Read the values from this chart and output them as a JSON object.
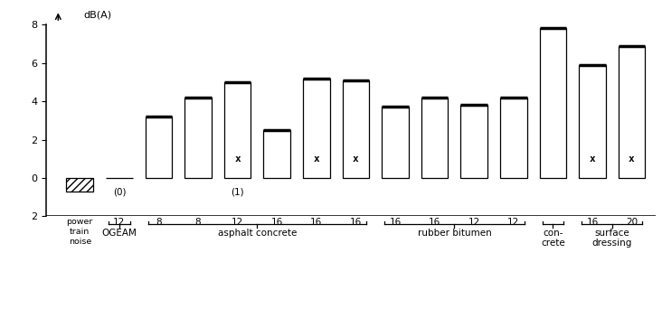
{
  "bars": [
    {
      "num_label": "",
      "value": -0.7,
      "hatched": true,
      "has_star": false,
      "annotation": "",
      "is_power_train": true
    },
    {
      "num_label": "12",
      "value": 0.0,
      "hatched": false,
      "has_star": false,
      "annotation": "(0)",
      "is_power_train": false
    },
    {
      "num_label": "8",
      "value": 3.2,
      "hatched": false,
      "has_star": false,
      "annotation": "",
      "is_power_train": false
    },
    {
      "num_label": "8",
      "value": 4.2,
      "hatched": false,
      "has_star": false,
      "annotation": "",
      "is_power_train": false
    },
    {
      "num_label": "12",
      "value": 5.0,
      "hatched": false,
      "has_star": true,
      "annotation": "(1)",
      "is_power_train": false
    },
    {
      "num_label": "16",
      "value": 2.5,
      "hatched": false,
      "has_star": false,
      "annotation": "",
      "is_power_train": false
    },
    {
      "num_label": "16",
      "value": 5.2,
      "hatched": false,
      "has_star": true,
      "annotation": "",
      "is_power_train": false
    },
    {
      "num_label": "16",
      "value": 5.1,
      "hatched": false,
      "has_star": true,
      "annotation": "",
      "is_power_train": false
    },
    {
      "num_label": "16",
      "value": 3.7,
      "hatched": false,
      "has_star": false,
      "annotation": "",
      "is_power_train": false
    },
    {
      "num_label": "16",
      "value": 4.2,
      "hatched": false,
      "has_star": false,
      "annotation": "",
      "is_power_train": false
    },
    {
      "num_label": "12",
      "value": 3.8,
      "hatched": false,
      "has_star": false,
      "annotation": "",
      "is_power_train": false
    },
    {
      "num_label": "12",
      "value": 4.2,
      "hatched": false,
      "has_star": false,
      "annotation": "",
      "is_power_train": false
    },
    {
      "num_label": "",
      "value": 7.8,
      "hatched": false,
      "has_star": false,
      "annotation": "",
      "is_power_train": false
    },
    {
      "num_label": "16",
      "value": 5.9,
      "hatched": false,
      "has_star": true,
      "annotation": "",
      "is_power_train": false
    },
    {
      "num_label": "20",
      "value": 6.9,
      "hatched": false,
      "has_star": true,
      "annotation": "",
      "is_power_train": false
    }
  ],
  "groups": [
    {
      "label": "OGEAM",
      "bar_indices": [
        1
      ],
      "multiline": false
    },
    {
      "label": "asphalt concrete",
      "bar_indices": [
        2,
        3,
        4,
        5,
        6,
        7
      ],
      "multiline": false
    },
    {
      "label": "rubber bitumen",
      "bar_indices": [
        8,
        9,
        10,
        11
      ],
      "multiline": false
    },
    {
      "label": "con-\ncrete",
      "bar_indices": [
        12
      ],
      "multiline": true
    },
    {
      "label": "surface\ndressing",
      "bar_indices": [
        13,
        14
      ],
      "multiline": true
    }
  ],
  "ymin": -2.0,
  "ymax": 8.0,
  "yticks": [
    0,
    2,
    4,
    6,
    8
  ],
  "ylabel": "dB(A)",
  "bar_width": 0.68,
  "star_symbol": "x",
  "background": "white"
}
